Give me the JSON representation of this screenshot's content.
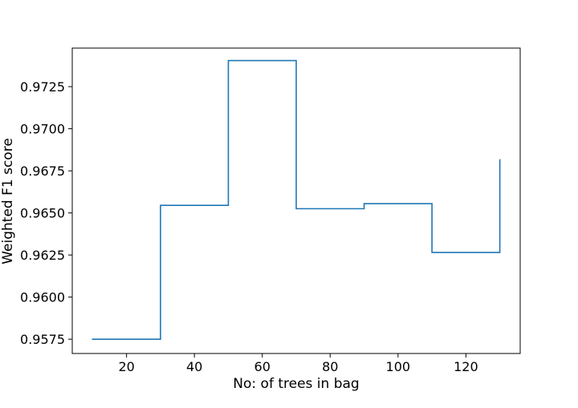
{
  "chart_data": {
    "type": "line",
    "step": "post",
    "title": "",
    "xlabel": "No: of trees in bag",
    "ylabel": "Weighted F1 score",
    "xlim": [
      4.0,
      136.0
    ],
    "ylim": [
      0.95665,
      0.97479
    ],
    "xticks": [
      20,
      40,
      60,
      80,
      100,
      120
    ],
    "yticks": [
      0.9575,
      0.96,
      0.9625,
      0.965,
      0.9675,
      0.97,
      0.9725
    ],
    "ytick_labels": [
      "0.9575",
      "0.9600",
      "0.9625",
      "0.9650",
      "0.9675",
      "0.9700",
      "0.9725"
    ],
    "grid": false,
    "series": [
      {
        "color": "#1f77b4",
        "x": [
          10,
          30,
          50,
          70,
          90,
          110,
          130
        ],
        "y": [
          0.9575,
          0.96545,
          0.97405,
          0.96525,
          0.96555,
          0.96265,
          0.96815
        ]
      }
    ]
  }
}
